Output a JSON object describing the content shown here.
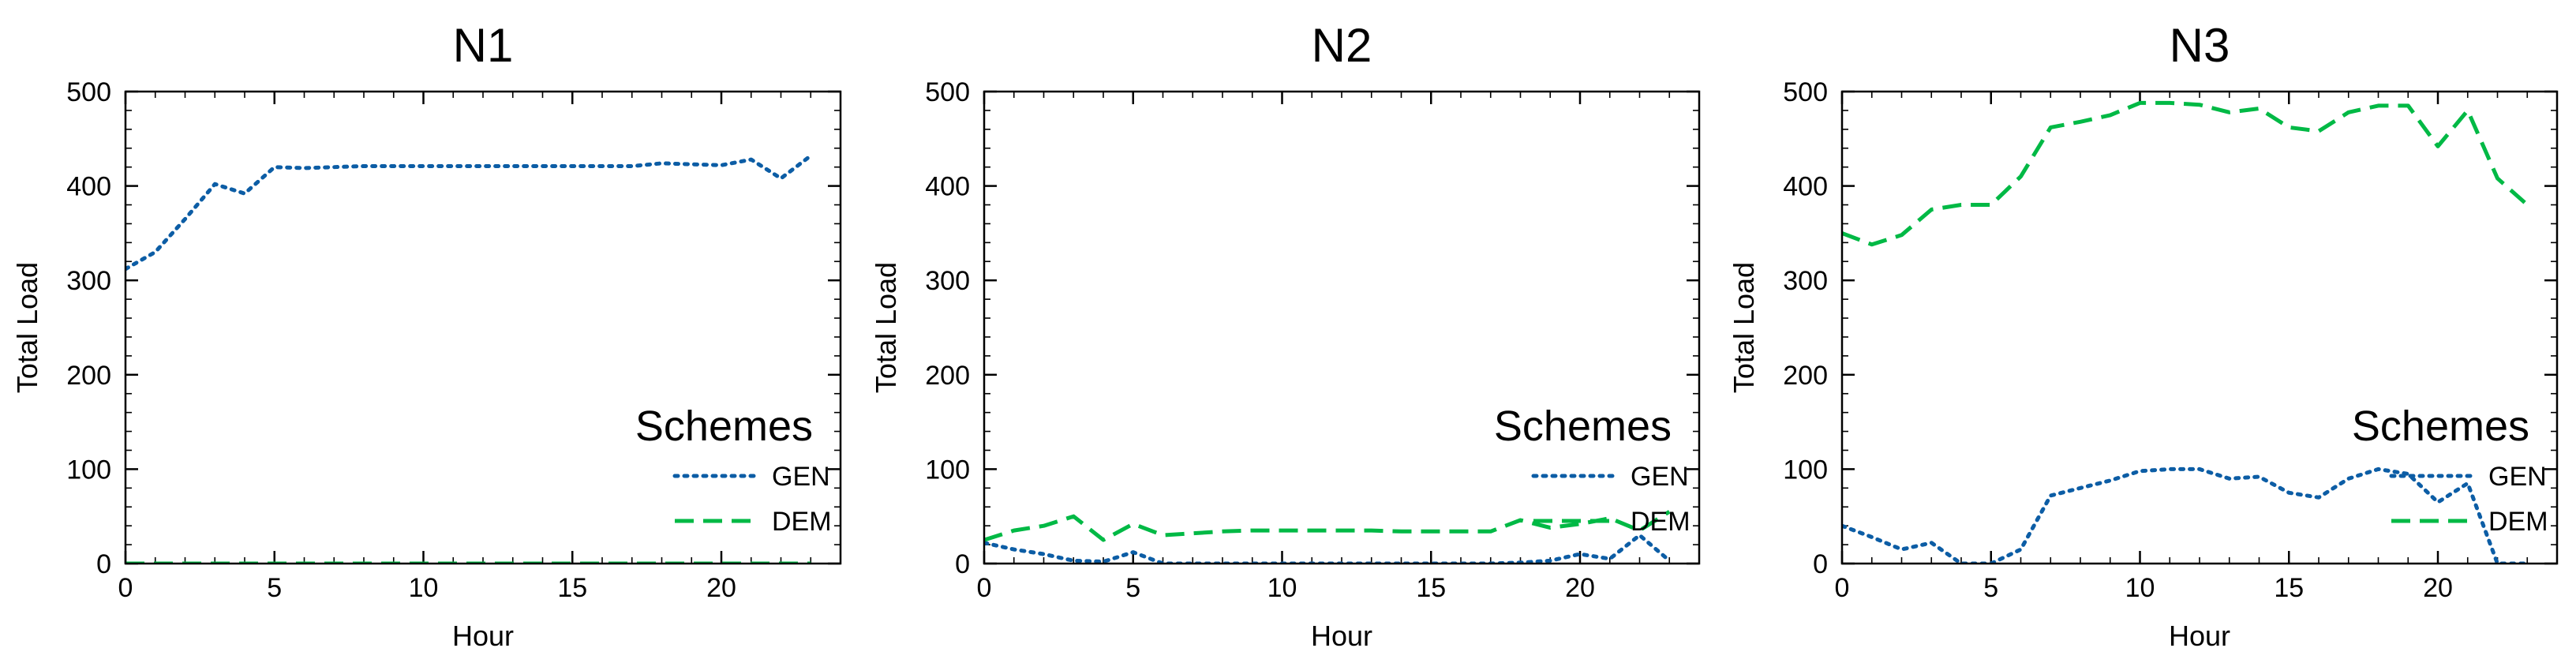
{
  "colors": {
    "GEN": "#0c5da5",
    "DEM": "#00b945"
  },
  "chart_data": [
    {
      "type": "line",
      "title": "N1",
      "xlabel": "Hour",
      "ylabel": "Total Load",
      "xlim": [
        0,
        24
      ],
      "ylim": [
        0,
        500
      ],
      "xticks": [
        0,
        5,
        10,
        15,
        20
      ],
      "yticks": [
        0,
        100,
        200,
        300,
        400,
        500
      ],
      "legend": {
        "title": "Schemes",
        "placement": "lower-right"
      },
      "x": [
        0,
        1,
        2,
        3,
        4,
        5,
        6,
        7,
        8,
        9,
        10,
        11,
        12,
        13,
        14,
        15,
        16,
        17,
        18,
        19,
        20,
        21,
        22,
        23
      ],
      "series": [
        {
          "name": "GEN",
          "style": "dotted",
          "values": [
            312,
            330,
            365,
            402,
            392,
            420,
            419,
            420,
            421,
            421,
            421,
            421,
            421,
            421,
            421,
            421,
            421,
            421,
            424,
            423,
            422,
            428,
            408,
            432
          ]
        },
        {
          "name": "DEM",
          "style": "dashed",
          "values": [
            0,
            0,
            0,
            0,
            0,
            0,
            0,
            0,
            0,
            0,
            0,
            0,
            0,
            0,
            0,
            0,
            0,
            0,
            0,
            0,
            0,
            0,
            0,
            0
          ]
        }
      ]
    },
    {
      "type": "line",
      "title": "N2",
      "xlabel": "Hour",
      "ylabel": "Total Load",
      "xlim": [
        0,
        24
      ],
      "ylim": [
        0,
        500
      ],
      "xticks": [
        0,
        5,
        10,
        15,
        20
      ],
      "yticks": [
        0,
        100,
        200,
        300,
        400,
        500
      ],
      "legend": {
        "title": "Schemes",
        "placement": "lower-right"
      },
      "x": [
        0,
        1,
        2,
        3,
        4,
        5,
        6,
        7,
        8,
        9,
        10,
        11,
        12,
        13,
        14,
        15,
        16,
        17,
        18,
        19,
        20,
        21,
        22,
        23
      ],
      "series": [
        {
          "name": "GEN",
          "style": "dotted",
          "values": [
            22,
            15,
            10,
            3,
            2,
            12,
            0,
            0,
            0,
            0,
            0,
            0,
            0,
            0,
            0,
            0,
            0,
            0,
            1,
            3,
            10,
            5,
            30,
            3
          ]
        },
        {
          "name": "DEM",
          "style": "dashed",
          "values": [
            25,
            35,
            40,
            50,
            25,
            42,
            30,
            32,
            34,
            35,
            35,
            35,
            35,
            35,
            34,
            34,
            34,
            34,
            46,
            38,
            42,
            48,
            35,
            55
          ]
        }
      ]
    },
    {
      "type": "line",
      "title": "N3",
      "xlabel": "Hour",
      "ylabel": "Total Load",
      "xlim": [
        0,
        24
      ],
      "ylim": [
        0,
        500
      ],
      "xticks": [
        0,
        5,
        10,
        15,
        20
      ],
      "yticks": [
        0,
        100,
        200,
        300,
        400,
        500
      ],
      "legend": {
        "title": "Schemes",
        "placement": "lower-right"
      },
      "x": [
        0,
        1,
        2,
        3,
        4,
        5,
        6,
        7,
        8,
        9,
        10,
        11,
        12,
        13,
        14,
        15,
        16,
        17,
        18,
        19,
        20,
        21,
        22,
        23
      ],
      "series": [
        {
          "name": "GEN",
          "style": "dotted",
          "values": [
            40,
            28,
            15,
            22,
            0,
            0,
            15,
            72,
            80,
            88,
            98,
            100,
            100,
            90,
            92,
            75,
            70,
            90,
            100,
            95,
            65,
            85,
            0,
            0
          ]
        },
        {
          "name": "DEM",
          "style": "dashed",
          "values": [
            350,
            338,
            348,
            375,
            380,
            380,
            410,
            462,
            468,
            475,
            488,
            488,
            486,
            478,
            482,
            462,
            458,
            478,
            485,
            485,
            442,
            480,
            408,
            380
          ]
        }
      ]
    }
  ]
}
